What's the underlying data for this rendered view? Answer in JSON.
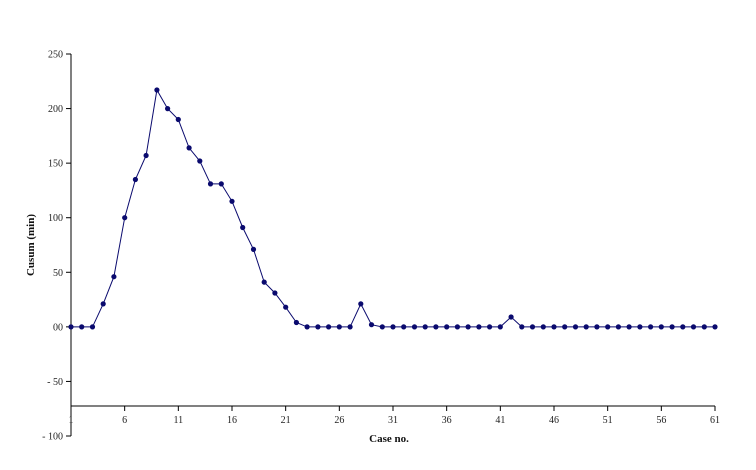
{
  "chart_data": {
    "type": "line",
    "title": "",
    "xlabel": "Case no.",
    "ylabel": "Cusum (min)",
    "xlim": [
      1,
      61
    ],
    "ylim": [
      -100,
      250
    ],
    "x_ticks": [
      1,
      6,
      11,
      16,
      21,
      26,
      31,
      36,
      41,
      46,
      51,
      56,
      61
    ],
    "y_ticks": [
      250,
      200,
      150,
      100,
      50,
      0,
      -50,
      -100
    ],
    "y_tick_labels": [
      "250",
      "200",
      "150",
      "100",
      "50",
      "00",
      "- 50",
      "- 100"
    ],
    "grid": false,
    "legend": "none",
    "series": [
      {
        "color": "#0a0a6e",
        "x": [
          1,
          2,
          3,
          4,
          5,
          6,
          7,
          8,
          9,
          10,
          11,
          12,
          13,
          14,
          15,
          16,
          17,
          18,
          19,
          20,
          21,
          22,
          23,
          24,
          25,
          26,
          27,
          28,
          29,
          30,
          31,
          32,
          33,
          34,
          35,
          36,
          37,
          38,
          39,
          40,
          41,
          42,
          43,
          44,
          45,
          46,
          47,
          48,
          49,
          50,
          51,
          52,
          53,
          54,
          55,
          56,
          57,
          58,
          59,
          60,
          61
        ],
        "values": [
          0,
          0,
          0,
          21,
          46,
          100,
          135,
          157,
          217,
          200,
          190,
          164,
          152,
          131,
          131,
          115,
          91,
          71,
          41,
          31,
          18,
          4,
          0,
          0,
          0,
          0,
          0,
          21,
          2,
          0,
          0,
          0,
          0,
          0,
          0,
          0,
          0,
          0,
          0,
          0,
          0,
          9,
          0,
          0,
          0,
          0,
          0,
          0,
          0,
          0,
          0,
          0,
          0,
          0,
          0,
          0,
          0,
          0,
          0,
          0,
          0
        ]
      }
    ]
  }
}
